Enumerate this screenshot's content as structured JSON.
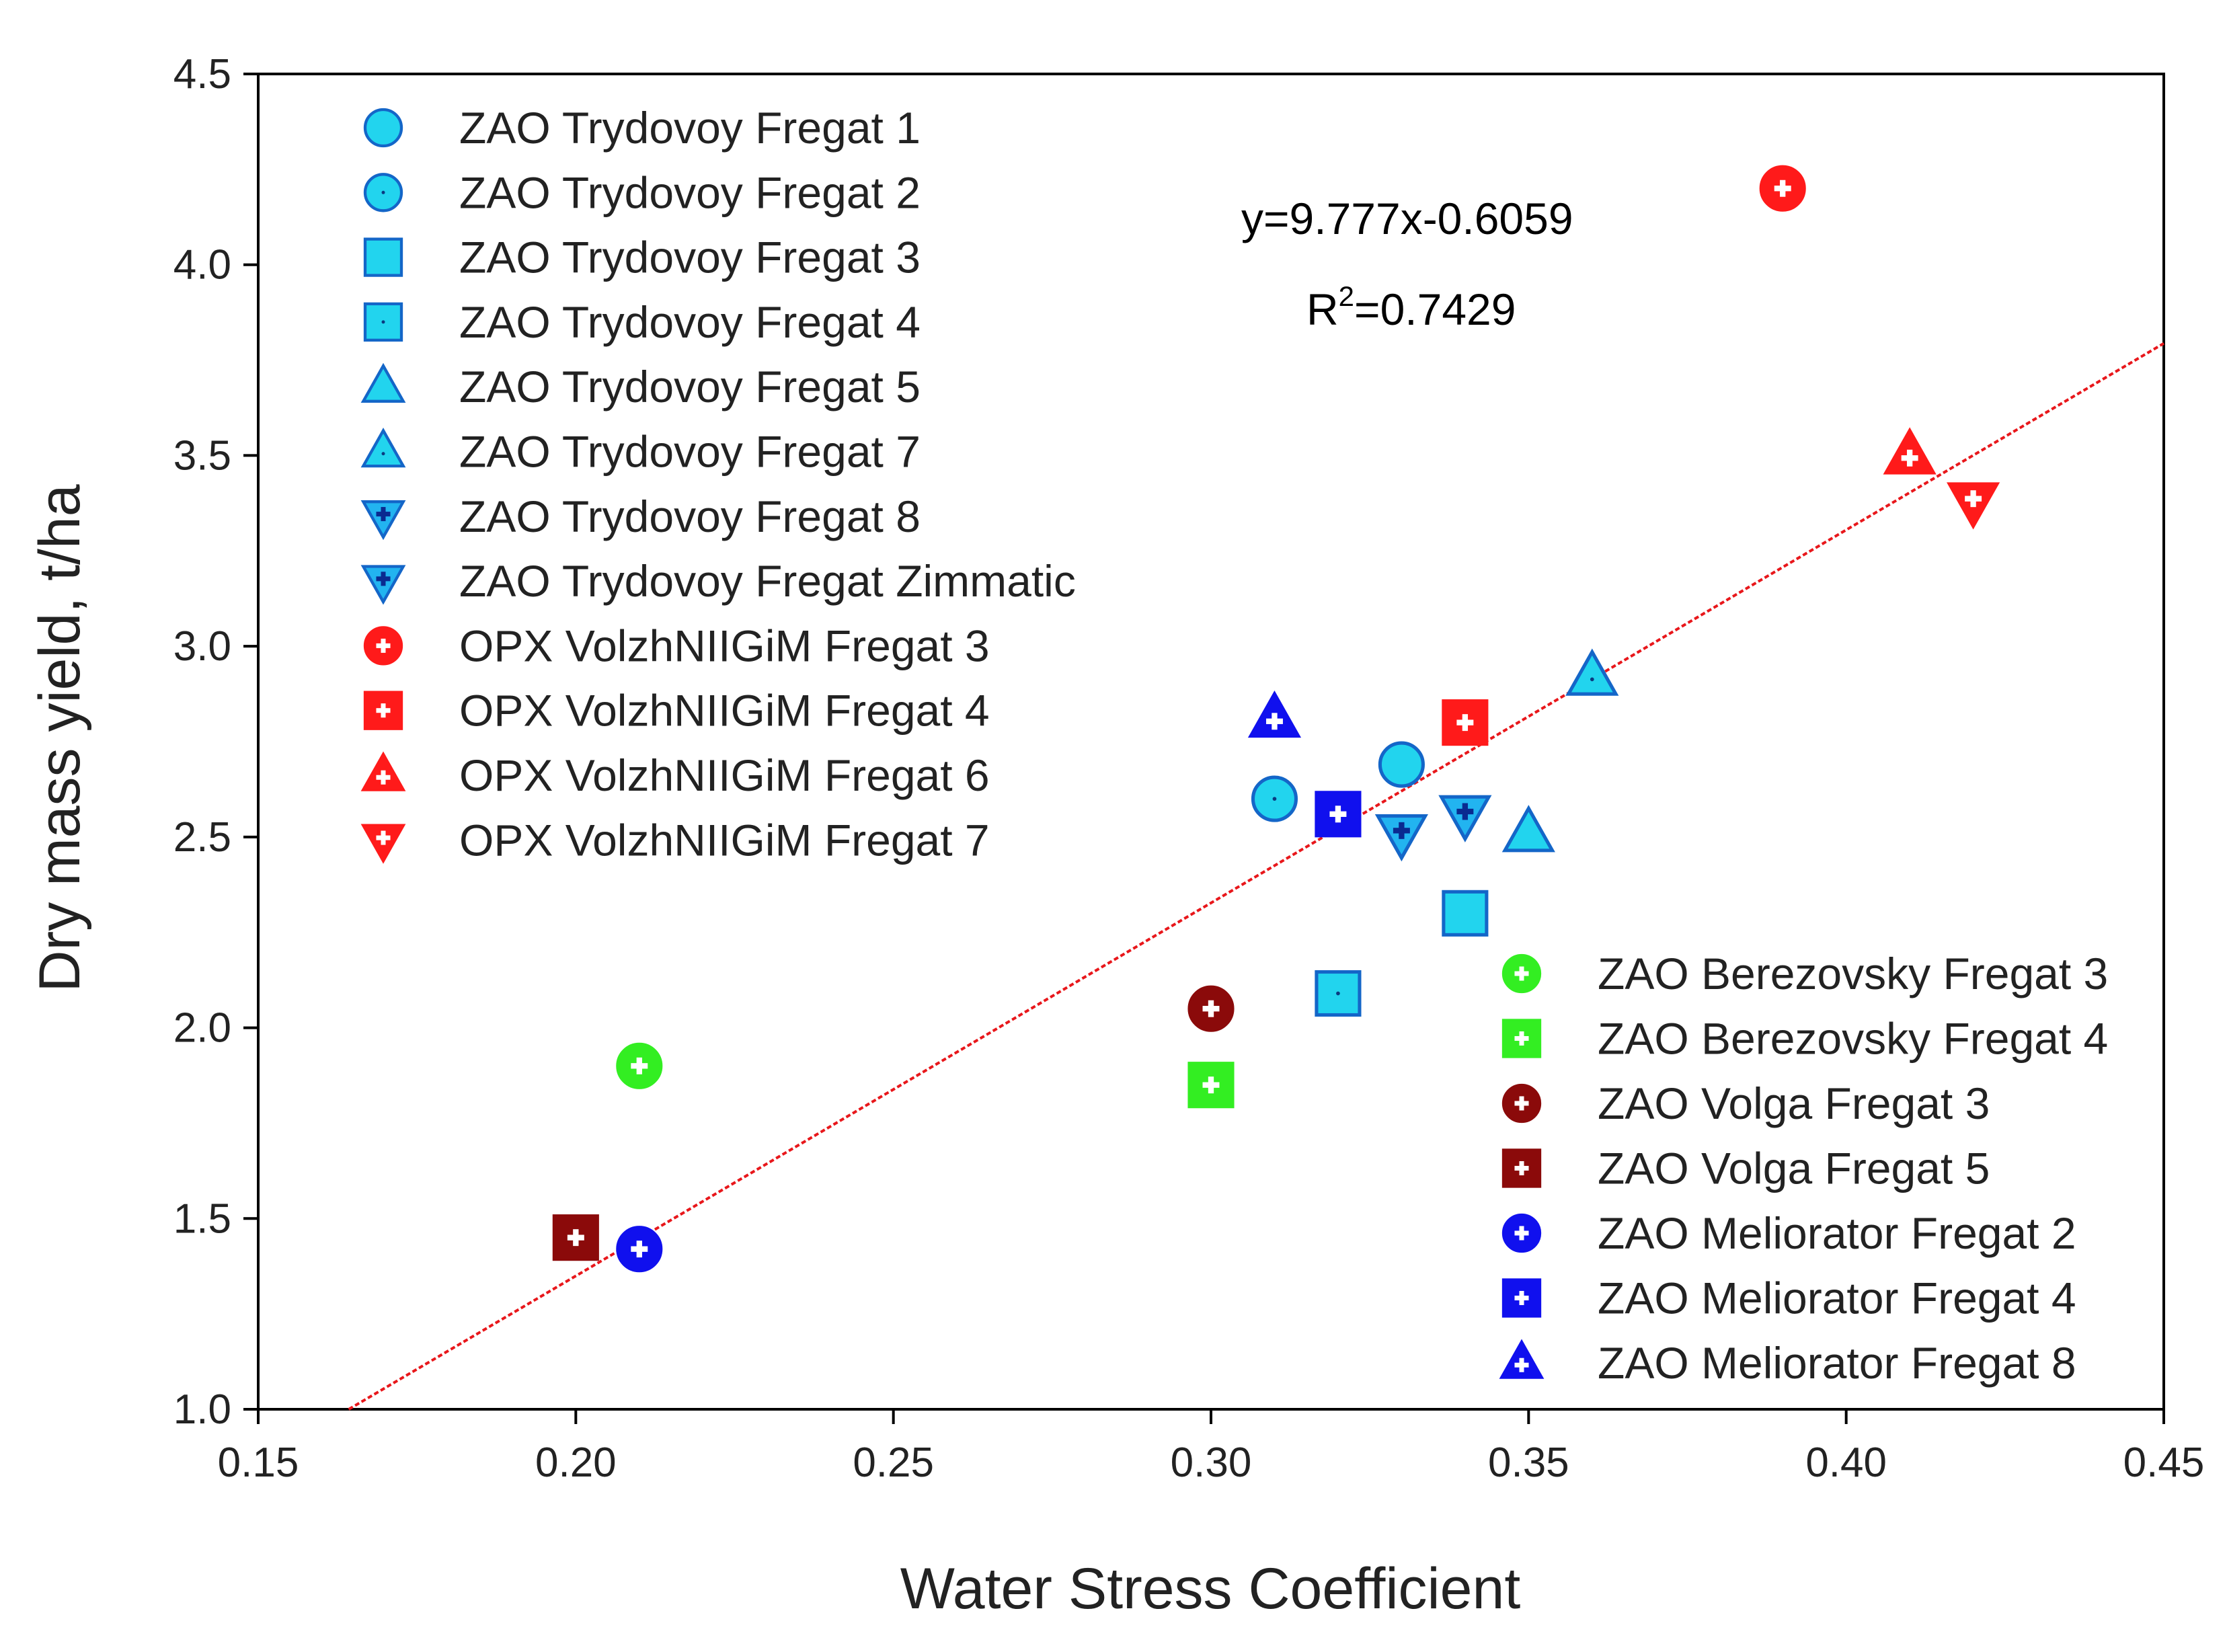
{
  "chart_data": {
    "type": "scatter",
    "xlabel": "Water Stress Coefficient",
    "ylabel": "Dry mass yield,  t/ha",
    "xlim": [
      0.15,
      0.45
    ],
    "ylim": [
      1.0,
      4.5
    ],
    "xticks": [
      {
        "value": 0.15,
        "label": "0.15"
      },
      {
        "value": 0.2,
        "label": "0.20"
      },
      {
        "value": 0.25,
        "label": "0.25"
      },
      {
        "value": 0.3,
        "label": "0.30"
      },
      {
        "value": 0.35,
        "label": "0.35"
      },
      {
        "value": 0.4,
        "label": "0.40"
      },
      {
        "value": 0.45,
        "label": "0.45"
      }
    ],
    "yticks": [
      {
        "value": 1.0,
        "label": "1.0"
      },
      {
        "value": 1.5,
        "label": "1.5"
      },
      {
        "value": 2.0,
        "label": "2.0"
      },
      {
        "value": 2.5,
        "label": "2.5"
      },
      {
        "value": 3.0,
        "label": "3.0"
      },
      {
        "value": 3.5,
        "label": "3.5"
      },
      {
        "value": 4.0,
        "label": "4.0"
      },
      {
        "value": 4.5,
        "label": "4.5"
      }
    ],
    "grid": false,
    "legend_placement": [
      "top-left",
      "bottom-right"
    ],
    "trendline": {
      "slope": 9.777,
      "intercept": -0.6059,
      "equation": "y=9.777x-0.6059",
      "r2_prefix": "R",
      "r2_sup": "2",
      "r2_value": "=0.7429",
      "color": "#e8171b"
    },
    "series": [
      {
        "name": "ZAO Trydovoy Fregat 1",
        "marker": "circle",
        "fill": "#22d4ee",
        "stroke": "#1466c8",
        "inner": "none",
        "legend": "top-left",
        "x": [
          0.33
        ],
        "y": [
          2.69
        ]
      },
      {
        "name": "ZAO Trydovoy Fregat 2",
        "marker": "circle",
        "fill": "#22d4ee",
        "stroke": "#1466c8",
        "inner": "dot",
        "legend": "top-left",
        "x": [
          0.31
        ],
        "y": [
          2.6
        ]
      },
      {
        "name": "ZAO Trydovoy Fregat 3",
        "marker": "square",
        "fill": "#22d4ee",
        "stroke": "#1466c8",
        "inner": "none",
        "legend": "top-left",
        "x": [
          0.34
        ],
        "y": [
          2.3
        ]
      },
      {
        "name": "ZAO Trydovoy Fregat 4",
        "marker": "square",
        "fill": "#22d4ee",
        "stroke": "#1466c8",
        "inner": "dot",
        "legend": "top-left",
        "x": [
          0.32
        ],
        "y": [
          2.09
        ]
      },
      {
        "name": "ZAO Trydovoy Fregat 5",
        "marker": "triangle-up",
        "fill": "#22d4ee",
        "stroke": "#1466c8",
        "inner": "none",
        "legend": "top-left",
        "x": [
          0.35
        ],
        "y": [
          2.51
        ]
      },
      {
        "name": "ZAO Trydovoy Fregat 7",
        "marker": "triangle-up",
        "fill": "#22d4ee",
        "stroke": "#1466c8",
        "inner": "dot",
        "legend": "top-left",
        "x": [
          0.36
        ],
        "y": [
          2.92
        ]
      },
      {
        "name": "ZAO Trydovoy Fregat 8",
        "marker": "triangle-down",
        "fill": "#22b4f0",
        "stroke": "#1466c8",
        "inner": "cross-blue",
        "legend": "top-left",
        "x": [
          0.33
        ],
        "y": [
          2.51
        ]
      },
      {
        "name": "ZAO Trydovoy Fregat Zimmatic",
        "marker": "triangle-down",
        "fill": "#22b4f0",
        "stroke": "#1466c8",
        "inner": "cross-blue",
        "legend": "top-left",
        "x": [
          0.34
        ],
        "y": [
          2.56
        ]
      },
      {
        "name": "OPX VolzhNIIGiM Fregat 3",
        "marker": "circle",
        "fill": "#ff1a1a",
        "stroke": "#ff1a1a",
        "inner": "cross",
        "legend": "top-left",
        "x": [
          0.39
        ],
        "y": [
          4.2
        ]
      },
      {
        "name": "OPX VolzhNIIGiM Fregat 4",
        "marker": "square",
        "fill": "#ff1a1a",
        "stroke": "#ff1a1a",
        "inner": "cross",
        "legend": "top-left",
        "x": [
          0.34
        ],
        "y": [
          2.8
        ]
      },
      {
        "name": "OPX VolzhNIIGiM Fregat 6",
        "marker": "triangle-up",
        "fill": "#ff1a1a",
        "stroke": "#ff1a1a",
        "inner": "cross",
        "legend": "top-left",
        "x": [
          0.41
        ],
        "y": [
          3.5
        ]
      },
      {
        "name": "OPX VolzhNIIGiM Fregat 7",
        "marker": "triangle-down",
        "fill": "#ff1a1a",
        "stroke": "#ff1a1a",
        "inner": "cross",
        "legend": "top-left",
        "x": [
          0.42
        ],
        "y": [
          3.38
        ]
      },
      {
        "name": "ZAO Berezovsky Fregat 3",
        "marker": "circle",
        "fill": "#33ee22",
        "stroke": "#33ee22",
        "inner": "cross",
        "legend": "bottom-right",
        "x": [
          0.21
        ],
        "y": [
          1.9
        ]
      },
      {
        "name": "ZAO Berezovsky Fregat 4",
        "marker": "square",
        "fill": "#33ee22",
        "stroke": "#33ee22",
        "inner": "cross",
        "legend": "bottom-right",
        "x": [
          0.3
        ],
        "y": [
          1.85
        ]
      },
      {
        "name": "ZAO Volga Fregat 3",
        "marker": "circle",
        "fill": "#8b0a0a",
        "stroke": "#8b0a0a",
        "inner": "cross",
        "legend": "bottom-right",
        "x": [
          0.3
        ],
        "y": [
          2.05
        ]
      },
      {
        "name": "ZAO Volga Fregat 5",
        "marker": "square",
        "fill": "#8b0a0a",
        "stroke": "#8b0a0a",
        "inner": "cross",
        "legend": "bottom-right",
        "x": [
          0.2
        ],
        "y": [
          1.45
        ]
      },
      {
        "name": "ZAO Meliorator Fregat 2",
        "marker": "circle",
        "fill": "#1010ee",
        "stroke": "#1010ee",
        "inner": "cross",
        "legend": "bottom-right",
        "x": [
          0.21
        ],
        "y": [
          1.42
        ]
      },
      {
        "name": "ZAO Meliorator Fregat 4",
        "marker": "square",
        "fill": "#1010ee",
        "stroke": "#1010ee",
        "inner": "cross",
        "legend": "bottom-right",
        "x": [
          0.32
        ],
        "y": [
          2.56
        ]
      },
      {
        "name": "ZAO Meliorator Fregat 8",
        "marker": "triangle-up",
        "fill": "#1010ee",
        "stroke": "#1010ee",
        "inner": "cross",
        "legend": "bottom-right",
        "x": [
          0.31
        ],
        "y": [
          2.81
        ]
      }
    ]
  }
}
